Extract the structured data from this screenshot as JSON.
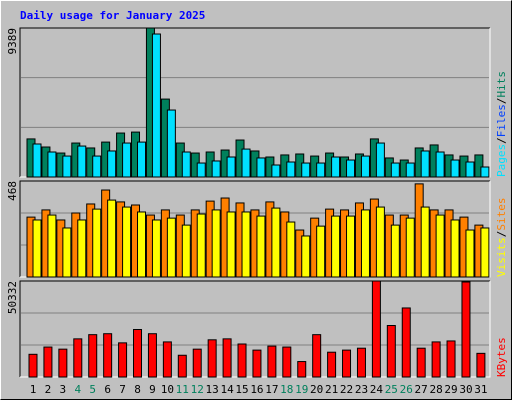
{
  "chart_data": [
    {
      "type": "bar",
      "title": "Daily usage for January 2025",
      "ylim": [
        0,
        9389
      ],
      "yticks": [
        9389
      ],
      "separator": "/",
      "series": [
        {
          "name": "Hits",
          "color": "#00805c",
          "values": [
            2400,
            1890,
            1510,
            2140,
            1830,
            2200,
            2770,
            2830,
            9389,
            4910,
            2140,
            1510,
            1575,
            1700,
            2330,
            1640,
            1260,
            1390,
            1450,
            1320,
            1510,
            1260,
            1450,
            2400,
            1200,
            1070,
            1830,
            2020,
            1390,
            1320,
            1390
          ]
        },
        {
          "name": "Files",
          "color": "#0040ff",
          "values": [
            null,
            null,
            null,
            null,
            null,
            null,
            null,
            null,
            null,
            null,
            null,
            null,
            null,
            null,
            null,
            null,
            null,
            null,
            null,
            null,
            null,
            null,
            null,
            null,
            null,
            null,
            null,
            null,
            null,
            null,
            null
          ]
        },
        {
          "name": "Pages",
          "color": "#00e0ff",
          "values": [
            2080,
            1575,
            1320,
            1950,
            1320,
            1640,
            2140,
            2200,
            9010,
            4220,
            1575,
            880,
            1010,
            1260,
            1760,
            1200,
            756,
            945,
            880,
            880,
            1260,
            1070,
            1320,
            2140,
            880,
            880,
            1640,
            1575,
            1070,
            945,
            630
          ]
        }
      ]
    },
    {
      "type": "bar",
      "ylim": [
        0,
        468
      ],
      "yticks": [
        468
      ],
      "separator": "/",
      "series": [
        {
          "name": "Sites",
          "color": "#ff8000",
          "values": [
            292,
            327,
            278,
            312,
            356,
            424,
            366,
            351,
            302,
            327,
            302,
            327,
            370,
            385,
            361,
            327,
            366,
            317,
            229,
            287,
            331,
            327,
            361,
            380,
            302,
            302,
            454,
            327,
            327,
            292,
            253
          ]
        },
        {
          "name": "Visits",
          "color": "#ffff00",
          "values": [
            278,
            302,
            239,
            278,
            331,
            375,
            341,
            317,
            278,
            287,
            253,
            307,
            327,
            317,
            317,
            297,
            336,
            268,
            200,
            248,
            297,
            297,
            327,
            341,
            253,
            287,
            341,
            302,
            278,
            229,
            239
          ]
        }
      ]
    },
    {
      "type": "bar",
      "ylim": [
        0,
        50332
      ],
      "yticks": [
        50332
      ],
      "categories": [
        "1",
        "2",
        "3",
        "4",
        "5",
        "6",
        "7",
        "8",
        "9",
        "10",
        "11",
        "12",
        "13",
        "14",
        "15",
        "16",
        "17",
        "18",
        "19",
        "20",
        "21",
        "22",
        "23",
        "24",
        "25",
        "26",
        "27",
        "28",
        "29",
        "30",
        "31"
      ],
      "label_colors": [
        "#000000",
        "#000000",
        "#000000",
        "#00805c",
        "#00805c",
        "#000000",
        "#000000",
        "#000000",
        "#000000",
        "#000000",
        "#00805c",
        "#00805c",
        "#000000",
        "#000000",
        "#000000",
        "#000000",
        "#000000",
        "#00805c",
        "#00805c",
        "#000000",
        "#000000",
        "#000000",
        "#000000",
        "#000000",
        "#00805c",
        "#00805c",
        "#000000",
        "#000000",
        "#000000",
        "#000000",
        "#000000"
      ],
      "series": [
        {
          "name": "KBytes",
          "color": "#ff0000",
          "values": [
            11900,
            15700,
            14600,
            20000,
            22200,
            22700,
            17900,
            24900,
            22700,
            18400,
            11400,
            14600,
            19500,
            20000,
            17300,
            14100,
            16200,
            15700,
            8100,
            22200,
            13000,
            14100,
            15100,
            50332,
            27000,
            36200,
            15100,
            18400,
            18900,
            49800,
            12400
          ]
        }
      ]
    }
  ]
}
